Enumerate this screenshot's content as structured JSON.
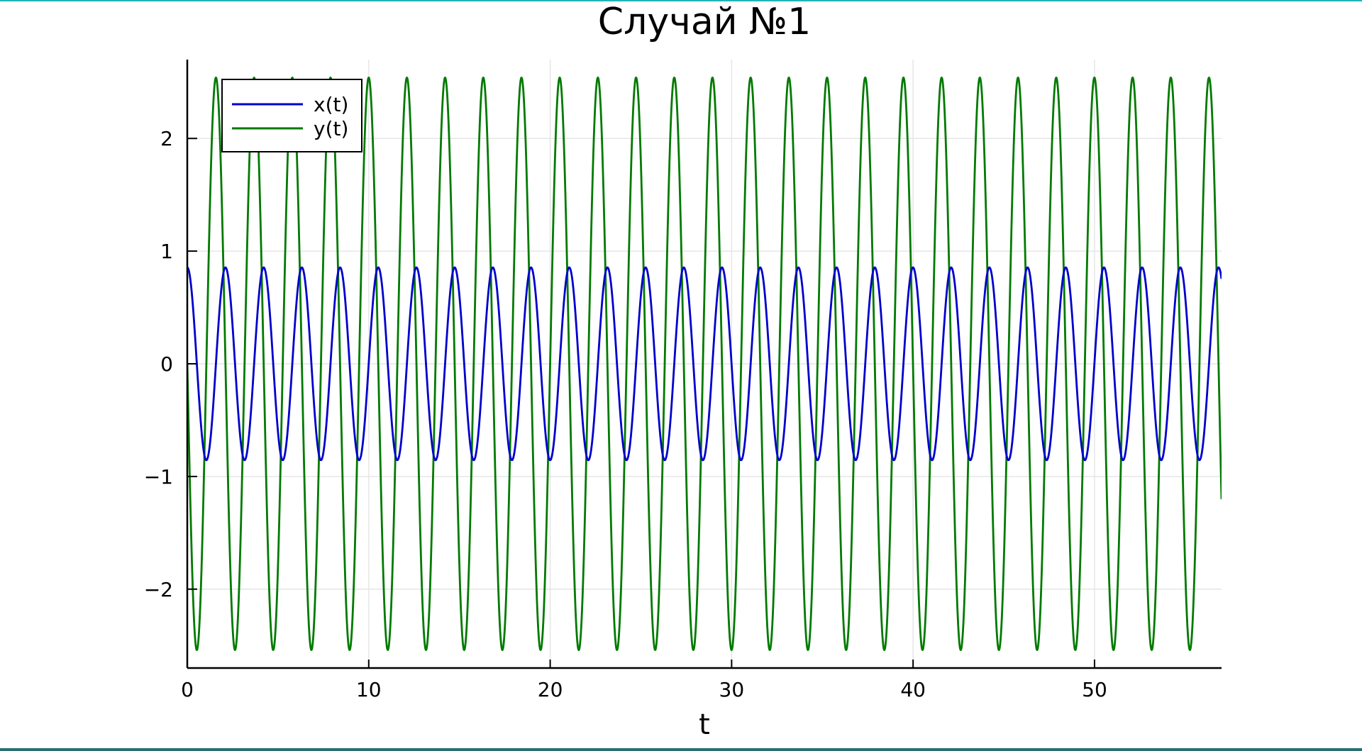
{
  "chart_data": {
    "type": "line",
    "title": "Случай №1",
    "xlabel": "t",
    "ylabel": "",
    "xlim": [
      0,
      57
    ],
    "ylim": [
      -2.7,
      2.7
    ],
    "x_ticks": [
      0,
      10,
      20,
      30,
      40,
      50
    ],
    "y_ticks": [
      -2,
      -1,
      0,
      1,
      2
    ],
    "x_tick_labels": [
      "0",
      "10",
      "20",
      "30",
      "40",
      "50"
    ],
    "y_tick_labels": [
      "−2",
      "−1",
      "0",
      "1",
      "2"
    ],
    "grid": true,
    "legend_position": "top-left",
    "series": [
      {
        "name": "x(t)",
        "color": "#0000cc",
        "amplitude": 0.855,
        "period": 2.105,
        "phase_start": 0.0,
        "form": "x = A*cos(2*pi*t/T)"
      },
      {
        "name": "y(t)",
        "color": "#007a00",
        "amplitude": 2.54,
        "period": 2.105,
        "phase_start": 0.0,
        "form": "y = -A*sin(2*pi*t/T)"
      }
    ]
  }
}
